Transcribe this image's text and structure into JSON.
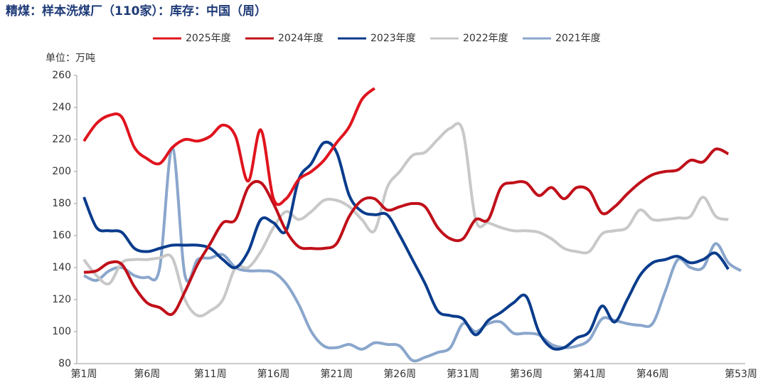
{
  "chart_data": {
    "type": "line",
    "title": "精煤：样本洗煤厂（110家）：库存：中国（周）",
    "unit_label": "单位：万吨",
    "categories": [
      "第1周",
      null,
      null,
      null,
      null,
      "第6周",
      null,
      null,
      null,
      null,
      "第11周",
      null,
      null,
      null,
      null,
      "第16周",
      null,
      null,
      null,
      null,
      "第21周",
      null,
      null,
      null,
      null,
      "第26周",
      null,
      null,
      null,
      null,
      "第31周",
      null,
      null,
      null,
      null,
      "第36周",
      null,
      null,
      null,
      null,
      "第41周",
      null,
      null,
      null,
      null,
      "第46周",
      null,
      null,
      null,
      null,
      null,
      null,
      "第53周"
    ],
    "ylim": [
      80,
      260
    ],
    "yticks": [
      80,
      100,
      120,
      140,
      160,
      180,
      200,
      220,
      240,
      260
    ],
    "legend_position": "top",
    "series": [
      {
        "name": "2025年度",
        "color": "#e0141e",
        "values": [
          219,
          230,
          235,
          234,
          215,
          208,
          205,
          215,
          220,
          219,
          222,
          229,
          222,
          194,
          226,
          183,
          183,
          195,
          200,
          207,
          218,
          228,
          245,
          252,
          null,
          null,
          null,
          null,
          null,
          null,
          null,
          null,
          null,
          null,
          null,
          null,
          null,
          null,
          null,
          null,
          null,
          null,
          null,
          null,
          null,
          null,
          null,
          null,
          null,
          null,
          null,
          null,
          null
        ]
      },
      {
        "name": "2024年度",
        "color": "#c0101a",
        "values": [
          137,
          138,
          143,
          142,
          128,
          118,
          115,
          111,
          125,
          142,
          155,
          168,
          170,
          190,
          193,
          180,
          163,
          153,
          152,
          152,
          155,
          172,
          182,
          183,
          176,
          178,
          180,
          178,
          165,
          158,
          158,
          170,
          170,
          190,
          193,
          193,
          185,
          190,
          183,
          190,
          188,
          174,
          178,
          186,
          193,
          198,
          200,
          201,
          207,
          206,
          214,
          211,
          null
        ]
      },
      {
        "name": "2023年度",
        "color": "#0a3c8c",
        "values": [
          184,
          165,
          163,
          162,
          152,
          150,
          152,
          154,
          154,
          154,
          152,
          145,
          140,
          150,
          170,
          168,
          163,
          195,
          205,
          218,
          212,
          185,
          175,
          173,
          173,
          160,
          145,
          130,
          113,
          110,
          108,
          98,
          107,
          112,
          118,
          122,
          100,
          90,
          90,
          96,
          100,
          116,
          106,
          120,
          135,
          143,
          145,
          147,
          143,
          145,
          149,
          139,
          null
        ]
      },
      {
        "name": "2022年度",
        "color": "#c8c8c8",
        "values": [
          145,
          135,
          130,
          143,
          145,
          145,
          146,
          146,
          120,
          110,
          113,
          120,
          140,
          140,
          150,
          165,
          175,
          170,
          175,
          182,
          182,
          178,
          170,
          163,
          190,
          200,
          210,
          212,
          220,
          227,
          225,
          170,
          168,
          165,
          163,
          163,
          162,
          158,
          152,
          150,
          150,
          161,
          163,
          165,
          176,
          170,
          170,
          171,
          172,
          184,
          172,
          170,
          null
        ]
      },
      {
        "name": "2021年度",
        "color": "#8aa6cc",
        "values": [
          135,
          132,
          138,
          140,
          135,
          134,
          140,
          215,
          135,
          145,
          146,
          148,
          140,
          138,
          138,
          137,
          130,
          117,
          100,
          91,
          90,
          92,
          89,
          93,
          92,
          91,
          82,
          84,
          87,
          90,
          105,
          100,
          105,
          106,
          99,
          99,
          98,
          92,
          90,
          91,
          95,
          108,
          107,
          105,
          104,
          105,
          125,
          145,
          140,
          140,
          155,
          143,
          138
        ]
      }
    ]
  }
}
